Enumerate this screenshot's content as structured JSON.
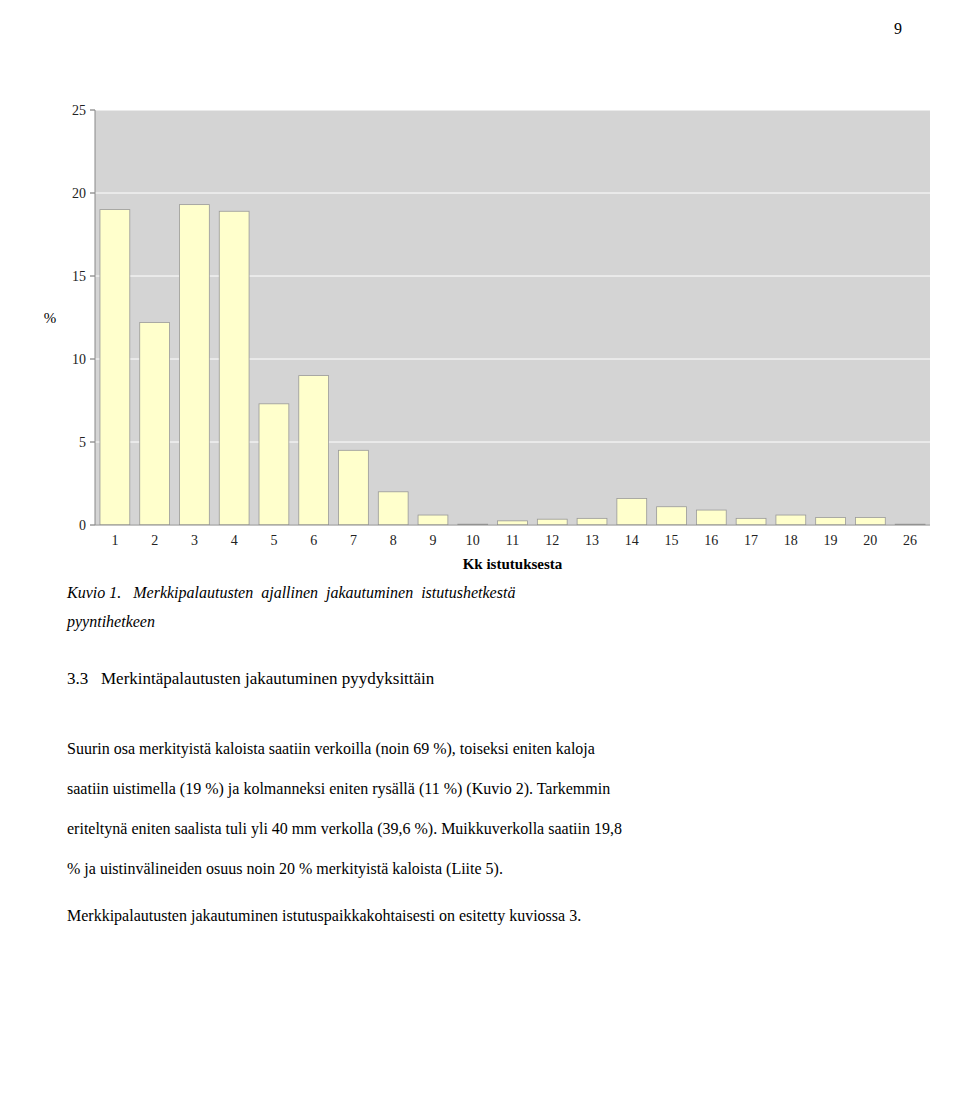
{
  "page_number": "9",
  "chart_data": {
    "type": "bar",
    "categories": [
      1,
      2,
      3,
      4,
      5,
      6,
      7,
      8,
      9,
      10,
      11,
      12,
      13,
      14,
      15,
      16,
      17,
      18,
      19,
      20,
      26
    ],
    "values": [
      19.0,
      12.2,
      19.3,
      18.9,
      7.3,
      9.0,
      4.5,
      2.0,
      0.6,
      0.05,
      0.25,
      0.35,
      0.4,
      1.6,
      1.1,
      0.9,
      0.4,
      0.6,
      0.45,
      0.45,
      0.05
    ],
    "color": "#ffffcc",
    "ylabel": "%",
    "xlabel": "Kk istutuksesta",
    "ylim": [
      0,
      25
    ],
    "yticks": [
      0,
      5,
      10,
      15,
      20,
      25
    ],
    "grid": true
  },
  "caption": [
    "Kuvio 1.   Merkkipalautusten  ajallinen  jakautuminen  istutushetkestä",
    "pyyntihetkeen"
  ],
  "section_header": "3.3   Merkintäpalautusten jakautuminen pyydyksittäin",
  "body": [
    "Suurin osa merkityistä kaloista saatiin verkoilla (noin 69 %), toiseksi eniten kaloja",
    "saatiin uistimella (19 %) ja kolmanneksi eniten rysällä (11 %) (Kuvio 2). Tarkemmin",
    "eriteltynä eniten saalista tuli yli 40 mm verkolla (39,6 %). Muikkuverkolla saatiin 19,8",
    "% ja uistinvälineiden osuus noin 20 % merkityistä kaloista (Liite 5)."
  ],
  "footer": "Merkkipalautusten jakautuminen istutuspaikkakohtaisesti on esitetty kuviossa 3."
}
